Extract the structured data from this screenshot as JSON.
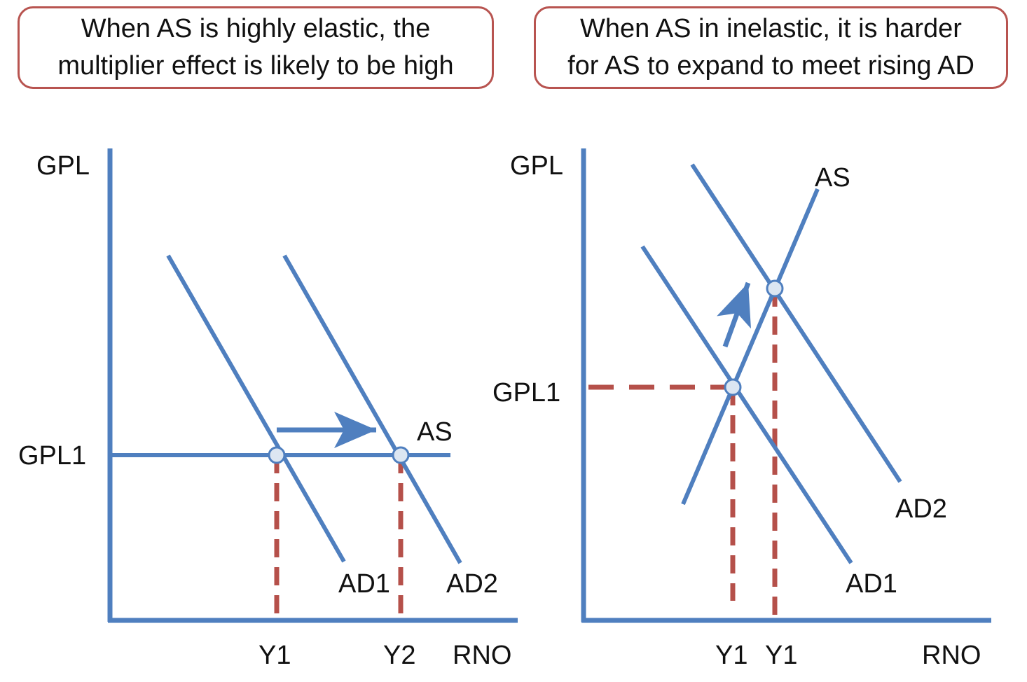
{
  "colors": {
    "curve": "#4f7fbf",
    "guide": "#b5504a",
    "callout_border": "#b85450",
    "point_fill": "#dce6f2",
    "text": "#111111"
  },
  "left_panel": {
    "callout": {
      "line1": "When AS is highly elastic, the",
      "line2": "multiplier effect is likely to be high"
    },
    "y_axis_label": "GPL",
    "price_label": "GPL1",
    "curve_labels": {
      "as": "AS",
      "ad1": "AD1",
      "ad2": "AD2"
    },
    "x_ticks": [
      "Y1",
      "Y2"
    ],
    "x_axis_label": "RNO",
    "arrow_icon": "right-arrow-icon"
  },
  "right_panel": {
    "callout": {
      "line1": "When AS in inelastic, it is harder",
      "line2": "for AS to expand to meet rising AD"
    },
    "y_axis_label": "GPL",
    "price_label": "GPL1",
    "curve_labels": {
      "as": "AS",
      "ad1": "AD1",
      "ad2": "AD2"
    },
    "x_ticks": [
      "Y1",
      "Y1"
    ],
    "x_axis_label": "RNO",
    "arrow_icon": "up-right-arrow-icon"
  }
}
